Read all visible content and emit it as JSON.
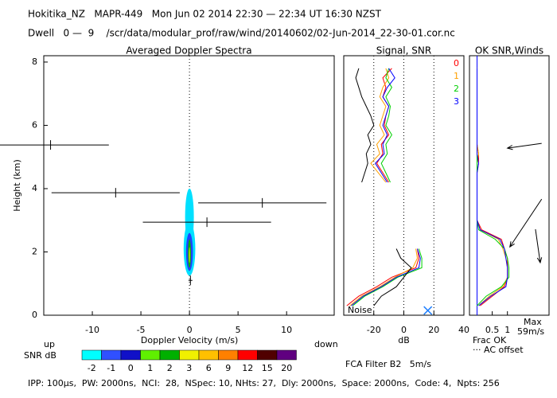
{
  "header": {
    "line1": "Hokitika_NZ   MAPR-449   Mon Jun 02 2014 22:30 — 22:34 UT 16:30 NZST",
    "line2": "Dwell   0 —  9    /scr/data/modular_prof/raw/wind/20140602/02-Jun-2014_22-30-01.cor.nc"
  },
  "footer": {
    "params": "IPP: 100µs,  PW: 2000ns,  NCI:  28,  NSpec: 10, NHts: 27,  Dly: 2000ns,  Space: 2000ns,  Code: 4,  Npts: 256",
    "filter": "FCA Filter B2   5m/s"
  },
  "chart_data": [
    {
      "type": "spectra",
      "title": "Averaged Doppler Spectra",
      "x_label": "Doppler Velocity (m/s)",
      "y_label": "Height (km)",
      "xlim": [
        -15,
        14.9
      ],
      "ylim": [
        0,
        8.2
      ],
      "xticks": [
        -10,
        -5,
        0,
        5,
        10
      ],
      "yticks": [
        0,
        2,
        4,
        6,
        8
      ],
      "vlines": [
        0
      ],
      "points": [
        {
          "x": -14.3,
          "y": 5.38,
          "xerr": 6
        },
        {
          "x": -7.6,
          "y": 3.87,
          "xerr": 6.6
        },
        {
          "x": 7.5,
          "y": 3.55,
          "xerr": 6.6
        },
        {
          "x": 1.8,
          "y": 2.94,
          "xerr": 6.6
        },
        {
          "x": 0.1,
          "y": 1.1,
          "xerr": 0.2
        }
      ],
      "contours": [
        {
          "color": "#00e0ff",
          "x": 0,
          "y": 3.1,
          "xw": 0.45,
          "yh": 0.9
        },
        {
          "color": "#00e0ff",
          "x": 0,
          "y": 2.1,
          "xw": 0.6,
          "yh": 0.85
        },
        {
          "color": "#2040ff",
          "x": 0,
          "y": 2.0,
          "xw": 0.35,
          "yh": 0.6
        },
        {
          "color": "#00b000",
          "x": 0,
          "y": 1.95,
          "xw": 0.15,
          "yh": 0.45
        },
        {
          "color": "#e0e000",
          "x": 0,
          "y": 1.9,
          "xw": 0.06,
          "yh": 0.25
        }
      ],
      "colorbar": {
        "up": "up",
        "down": "down",
        "label": "SNR dB",
        "values": [
          -2,
          -1,
          0,
          1,
          2,
          3,
          6,
          9,
          12,
          15,
          20
        ],
        "colors": [
          "#00ffff",
          "#3050ff",
          "#1010c8",
          "#60f000",
          "#00b000",
          "#f0f000",
          "#ffc000",
          "#ff8000",
          "#ff0000",
          "#500000",
          "#600080"
        ]
      }
    },
    {
      "type": "profile",
      "title": "Signal, SNR",
      "x_label": "dB",
      "note": "Noise",
      "xlim": [
        -40,
        40
      ],
      "ylim": [
        0,
        8.2
      ],
      "xticks": [
        -20,
        0,
        20,
        40
      ],
      "vlines": [
        -20,
        0,
        20
      ],
      "heights": [
        0.3,
        0.6,
        0.9,
        1.2,
        1.5,
        1.8,
        2.1,
        2.4,
        2.7,
        3.0,
        3.3,
        3.6,
        3.9,
        4.2,
        4.5,
        4.8,
        5.1,
        5.4,
        5.7,
        6.0,
        6.3,
        6.6,
        6.9,
        7.2,
        7.5,
        7.8
      ],
      "series": [
        {
          "color": "#ff0000",
          "values": [
            -38,
            -30,
            -18,
            -8,
            8,
            10,
            9,
            null,
            null,
            null,
            null,
            null,
            null,
            -10,
            -14,
            -18,
            -14,
            -15,
            -10,
            -13,
            -12,
            -10,
            -14,
            -12,
            -14,
            -8
          ]
        },
        {
          "color": "#ffa000",
          "values": [
            -36,
            -28,
            -16,
            -6,
            6,
            9,
            8,
            null,
            null,
            null,
            null,
            null,
            null,
            -12,
            -17,
            -22,
            -16,
            -18,
            -13,
            -16,
            -14,
            -12,
            -16,
            -14,
            -10,
            -12
          ]
        },
        {
          "color": "#00d000",
          "values": [
            -34,
            -26,
            -14,
            -4,
            12,
            12,
            10,
            null,
            null,
            null,
            null,
            null,
            null,
            -9,
            -12,
            -15,
            -11,
            -12,
            -8,
            -12,
            -10,
            -9,
            -12,
            -8,
            -12,
            -10
          ]
        },
        {
          "color": "#0000ff",
          "values": [
            -35,
            -27,
            -15,
            -5,
            10,
            11,
            9,
            null,
            null,
            null,
            null,
            null,
            null,
            -11,
            -15,
            -19,
            -13,
            -14,
            -11,
            -14,
            -12,
            -10,
            -14,
            -11,
            -6,
            -10
          ]
        },
        {
          "color": "#000000",
          "values": [
            -20,
            -15,
            -5,
            0,
            5,
            -2,
            -5,
            null,
            null,
            null,
            null,
            null,
            null,
            -28,
            -26,
            -24,
            -25,
            -22,
            -24,
            -20,
            -22,
            -25,
            -28,
            -30,
            -32,
            -30
          ]
        }
      ],
      "marker": {
        "x": 16,
        "y": 0.15,
        "color": "#2080ff"
      }
    },
    {
      "type": "profile",
      "title": "OK SNR,Winds",
      "axis_color": "#0000ff",
      "xlim": [
        -0.25,
        2.37
      ],
      "ylim": [
        0,
        8.2
      ],
      "xticks": [
        0.5,
        1
      ],
      "notes": [
        "Max",
        "59m/s",
        "Frac OK",
        "··· AC offset"
      ],
      "heights": [
        0.3,
        0.6,
        0.9,
        1.2,
        1.5,
        1.8,
        2.1,
        2.4,
        2.7,
        3.0,
        3.3,
        3.6,
        3.9,
        4.2,
        4.5,
        4.8,
        5.1,
        5.4,
        5.7,
        6.0,
        6.3,
        6.6,
        6.9,
        7.2,
        7.5,
        7.8
      ],
      "series": [
        {
          "name": "0",
          "color": "#ff0000",
          "values": [
            0.1,
            0.5,
            0.9,
            1,
            1,
            1,
            0.9,
            0.8,
            0.15,
            0,
            0,
            0,
            0,
            0,
            0,
            0.05,
            0.05,
            0,
            0,
            0,
            0,
            0,
            0,
            0,
            0,
            0
          ]
        },
        {
          "name": "1",
          "color": "#ffa000",
          "values": [
            0.05,
            0.4,
            0.85,
            1,
            1,
            0.95,
            0.85,
            0.7,
            0.1,
            0,
            0,
            0,
            0,
            0,
            0,
            0,
            0.05,
            0,
            0,
            0,
            0,
            0,
            0,
            0,
            0,
            0
          ]
        },
        {
          "name": "2",
          "color": "#00d000",
          "values": [
            0,
            0.3,
            0.8,
            1.05,
            1.05,
            1,
            0.9,
            0.6,
            0.05,
            0,
            0,
            0,
            0,
            0,
            0,
            0,
            0,
            0,
            0,
            0,
            0,
            0,
            0,
            0,
            0,
            0
          ]
        },
        {
          "name": "3",
          "color": "#0000ff",
          "values": [
            0.05,
            0.45,
            0.95,
            1,
            1,
            0.95,
            0.9,
            0.75,
            0.1,
            0,
            0,
            0,
            0,
            0,
            0,
            0.05,
            0,
            0,
            0,
            0,
            0,
            0,
            0,
            0,
            0,
            0
          ]
        }
      ],
      "winds": [
        {
          "x": 1.0,
          "height": 5.28,
          "u": -43,
          "v": -6
        },
        {
          "x": 1.08,
          "height": 2.16,
          "u": -40,
          "v": -60
        },
        {
          "x": 2.08,
          "height": 1.66,
          "u": 6,
          "v": -42
        }
      ]
    }
  ]
}
